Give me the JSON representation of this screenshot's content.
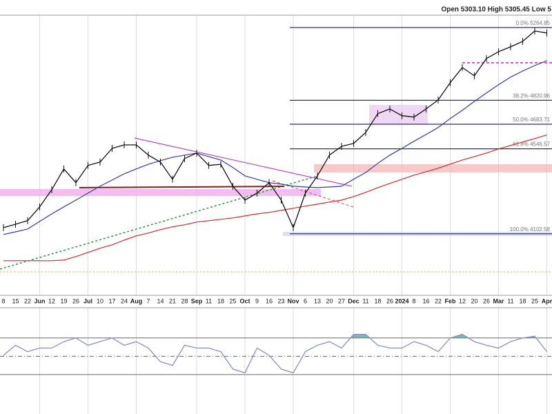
{
  "chart_data": {
    "type": "line",
    "title": "Open 5303.10  High 5305.45  Low 5",
    "categories": [
      "8",
      "15",
      "22",
      "Jun",
      "12",
      "19",
      "26",
      "Jul",
      "10",
      "17",
      "24",
      "Aug",
      "7",
      "14",
      "21",
      "28",
      "Sep",
      "11",
      "18",
      "25",
      "Oct",
      "9",
      "16",
      "23",
      "Nov",
      "6",
      "13",
      "20",
      "27",
      "Dec",
      "11",
      "18",
      "26",
      "2024",
      "8",
      "16",
      "22",
      "Feb",
      "12",
      "20",
      "26",
      "Mar",
      "11",
      "18",
      "25",
      "Apr"
    ],
    "series": [
      {
        "color": "#111111",
        "values": [
          4133,
          4150,
          4168,
          4238,
          4327,
          4437,
          4364,
          4456,
          4474,
          4549,
          4568,
          4568,
          4512,
          4474,
          4382,
          4493,
          4523,
          4456,
          4462,
          4345,
          4273,
          4309,
          4364,
          4273,
          4133,
          4309,
          4400,
          4512,
          4560,
          4576,
          4637,
          4744,
          4771,
          4732,
          4724,
          4771,
          4823,
          4925,
          5016,
          4966,
          5071,
          5113,
          5143,
          5177,
          5243,
          5230
        ]
      },
      {
        "color": "#2f3aa8",
        "values": [
          4099,
          4112,
          4126,
          4164,
          4202,
          4238,
          4273,
          4309,
          4345,
          4378,
          4411,
          4437,
          4462,
          4482,
          4500,
          4512,
          4523,
          4504,
          4485,
          4445,
          4400,
          4382,
          4364,
          4356,
          4345,
          4341,
          4338,
          4341,
          4345,
          4382,
          4418,
          4467,
          4512,
          4549,
          4588,
          4626,
          4665,
          4716,
          4763,
          4815,
          4864,
          4913,
          4958,
          4995,
          5028,
          5058
        ]
      },
      {
        "color": "#d42a2a",
        "values": [
          3971,
          3971,
          3971,
          3971,
          3971,
          3974,
          3991,
          4011,
          4031,
          4048,
          4071,
          4092,
          4106,
          4123,
          4137,
          4147,
          4161,
          4168,
          4175,
          4182,
          4192,
          4202,
          4210,
          4220,
          4231,
          4242,
          4252,
          4263,
          4273,
          4291,
          4313,
          4338,
          4360,
          4382,
          4404,
          4422,
          4441,
          4463,
          4485,
          4504,
          4523,
          4546,
          4565,
          4584,
          4603,
          4623
        ]
      }
    ],
    "ylim": [
      3808,
      5344
    ],
    "log_scale": true,
    "fib_levels": [
      {
        "value": 5264.85,
        "label": "0.0% 5264.85"
      },
      {
        "value": 4820.96,
        "label": "38.2% 4820.96"
      },
      {
        "value": 4683.71,
        "label": "50.0% 4683.71"
      },
      {
        "value": 4546.57,
        "label": "61.8% 4546.57"
      },
      {
        "value": 4102.58,
        "label": "100.0% 4102.58"
      }
    ],
    "fib_color": "#2c2f7a",
    "indicator": {
      "color": "#8890c4",
      "values": [
        51,
        62,
        55,
        59,
        59,
        66,
        70,
        62,
        66,
        70,
        62,
        66,
        59,
        44,
        40,
        62,
        59,
        59,
        55,
        36,
        32,
        59,
        51,
        36,
        32,
        55,
        62,
        66,
        59,
        74,
        74,
        62,
        59,
        59,
        66,
        62,
        55,
        70,
        74,
        66,
        62,
        59,
        66,
        70,
        72,
        55
      ],
      "ylim": [
        -13,
        103
      ],
      "levels": [
        30,
        50,
        70
      ],
      "fill_above": 70,
      "fill_color": "#5aa89a"
    }
  }
}
